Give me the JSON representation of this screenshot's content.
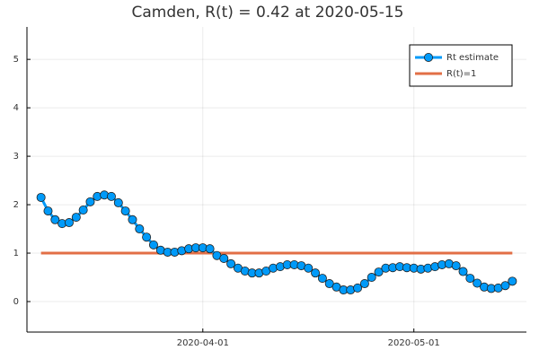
{
  "chart_data": {
    "type": "line",
    "title": "Camden, R(t) = 0.42 at 2020-05-15",
    "x": [
      "2020-03-09",
      "2020-03-10",
      "2020-03-11",
      "2020-03-12",
      "2020-03-13",
      "2020-03-14",
      "2020-03-15",
      "2020-03-16",
      "2020-03-17",
      "2020-03-18",
      "2020-03-19",
      "2020-03-20",
      "2020-03-21",
      "2020-03-22",
      "2020-03-23",
      "2020-03-24",
      "2020-03-25",
      "2020-03-26",
      "2020-03-27",
      "2020-03-28",
      "2020-03-29",
      "2020-03-30",
      "2020-03-31",
      "2020-04-01",
      "2020-04-02",
      "2020-04-03",
      "2020-04-04",
      "2020-04-05",
      "2020-04-06",
      "2020-04-07",
      "2020-04-08",
      "2020-04-09",
      "2020-04-10",
      "2020-04-11",
      "2020-04-12",
      "2020-04-13",
      "2020-04-14",
      "2020-04-15",
      "2020-04-16",
      "2020-04-17",
      "2020-04-18",
      "2020-04-19",
      "2020-04-20",
      "2020-04-21",
      "2020-04-22",
      "2020-04-23",
      "2020-04-24",
      "2020-04-25",
      "2020-04-26",
      "2020-04-27",
      "2020-04-28",
      "2020-04-29",
      "2020-04-30",
      "2020-05-01",
      "2020-05-02",
      "2020-05-03",
      "2020-05-04",
      "2020-05-05",
      "2020-05-06",
      "2020-05-07",
      "2020-05-08",
      "2020-05-09",
      "2020-05-10",
      "2020-05-11",
      "2020-05-12",
      "2020-05-13",
      "2020-05-14",
      "2020-05-15"
    ],
    "series": [
      {
        "name": "Rt estimate",
        "color": "#009af9",
        "markers": true,
        "values": [
          2.15,
          1.87,
          1.69,
          1.61,
          1.63,
          1.74,
          1.89,
          2.06,
          2.17,
          2.2,
          2.17,
          2.04,
          1.87,
          1.69,
          1.5,
          1.33,
          1.17,
          1.06,
          1.02,
          1.02,
          1.05,
          1.09,
          1.11,
          1.11,
          1.09,
          0.95,
          0.89,
          0.78,
          0.69,
          0.63,
          0.59,
          0.59,
          0.63,
          0.69,
          0.72,
          0.76,
          0.76,
          0.74,
          0.69,
          0.59,
          0.48,
          0.37,
          0.3,
          0.24,
          0.24,
          0.28,
          0.37,
          0.5,
          0.61,
          0.69,
          0.7,
          0.72,
          0.7,
          0.69,
          0.67,
          0.69,
          0.72,
          0.76,
          0.78,
          0.74,
          0.62,
          0.48,
          0.38,
          0.3,
          0.27,
          0.28,
          0.33,
          0.42
        ]
      },
      {
        "name": "R(t)=1",
        "color": "#e26f46",
        "markers": false,
        "values": [
          1,
          1,
          1,
          1,
          1,
          1,
          1,
          1,
          1,
          1,
          1,
          1,
          1,
          1,
          1,
          1,
          1,
          1,
          1,
          1,
          1,
          1,
          1,
          1,
          1,
          1,
          1,
          1,
          1,
          1,
          1,
          1,
          1,
          1,
          1,
          1,
          1,
          1,
          1,
          1,
          1,
          1,
          1,
          1,
          1,
          1,
          1,
          1,
          1,
          1,
          1,
          1,
          1,
          1,
          1,
          1,
          1,
          1,
          1,
          1,
          1,
          1,
          1,
          1,
          1,
          1,
          1,
          1
        ]
      }
    ],
    "xlim": [
      "2020-03-07",
      "2020-05-17"
    ],
    "xticks": [
      "2020-04-01",
      "2020-05-01"
    ],
    "ylim": [
      -0.63,
      5.67
    ],
    "yticks": [
      0,
      1,
      2,
      3,
      4,
      5
    ],
    "grid": true,
    "legend": "top-right"
  }
}
